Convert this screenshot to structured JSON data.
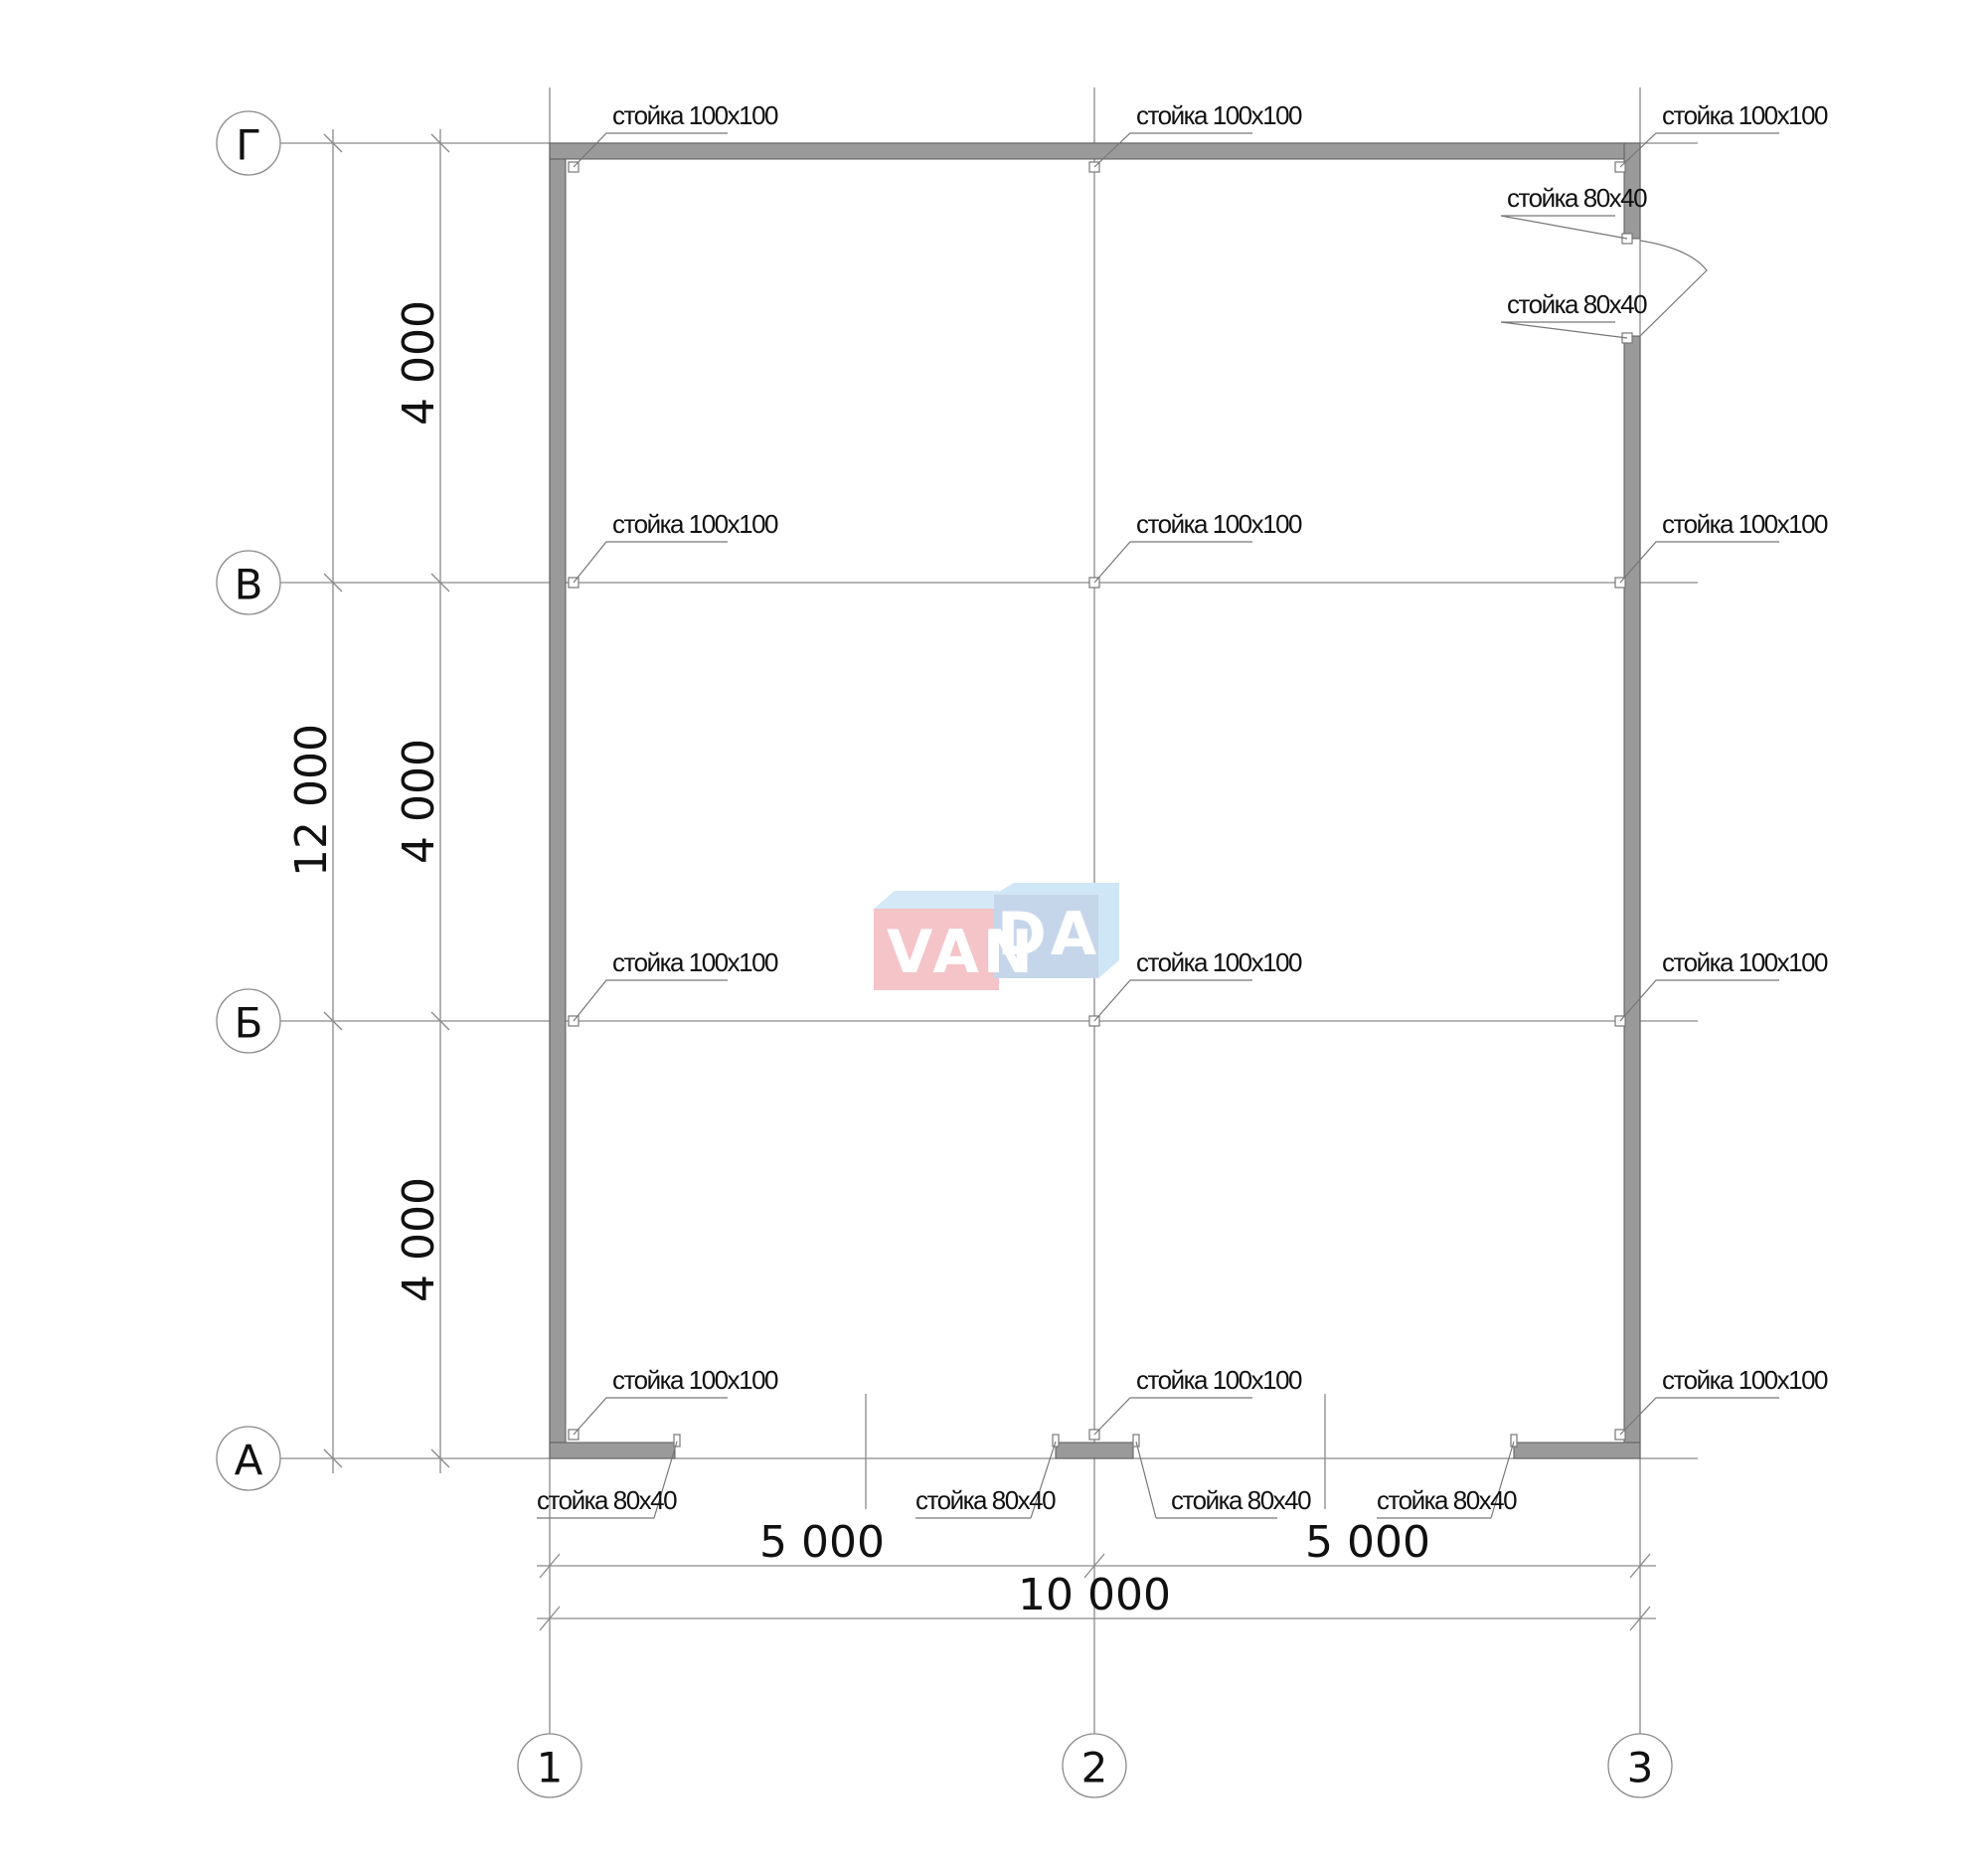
{
  "axes": {
    "rows": [
      "Г",
      "В",
      "Б",
      "А"
    ],
    "columns": [
      "1",
      "2",
      "3"
    ]
  },
  "dimensions": {
    "vertical_segments": [
      "4 000",
      "4 000",
      "4 000"
    ],
    "vertical_total": "12 000",
    "horizontal_segments": [
      "5 000",
      "5 000"
    ],
    "horizontal_total": "10 000"
  },
  "labels": {
    "post_100": "стойка 100х100",
    "post_80": "стойка 80х40"
  },
  "watermark": {
    "text_left": "VAN",
    "text_right": "DA",
    "colors": {
      "pink": "#f4c4c8",
      "blue": "#c6d6ea",
      "light_blue": "#cfe6f6"
    }
  },
  "colors": {
    "wall": "#9a9a9a",
    "lines": "#8a8a8a"
  }
}
